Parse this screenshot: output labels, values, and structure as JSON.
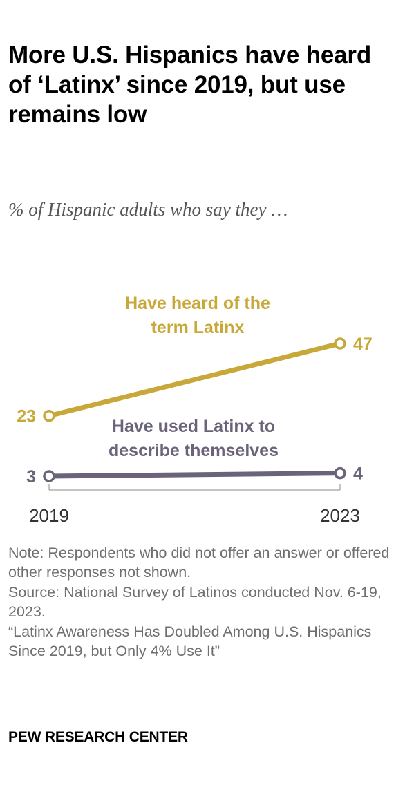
{
  "header": {
    "title": "More U.S. Hispanics have heard of ‘Latinx’ since 2019, but use remains low",
    "subtitle": "% of Hispanic adults who say they …"
  },
  "chart_data": {
    "type": "line",
    "x": [
      "2019",
      "2023"
    ],
    "series": [
      {
        "name_lines": [
          "Have heard of the",
          "term Latinx"
        ],
        "values": [
          23,
          47
        ],
        "labels": [
          "23",
          "47"
        ],
        "color": "#c9a83a"
      },
      {
        "name_lines": [
          "Have used Latinx to",
          "describe themselves"
        ],
        "values": [
          3,
          4
        ],
        "labels": [
          "3",
          "4"
        ],
        "color": "#6b6379"
      }
    ],
    "ylim": [
      0,
      50
    ],
    "grid": false,
    "legend": "inline"
  },
  "footer": {
    "note": "Note: Respondents who did not offer an answer or offered other responses not shown.",
    "source": "Source: National Survey of Latinos conducted Nov. 6-19, 2023.",
    "report": "“Latinx Awareness Has Doubled Among U.S. Hispanics Since 2019, but Only 4% Use It”",
    "organization": "PEW RESEARCH CENTER"
  }
}
